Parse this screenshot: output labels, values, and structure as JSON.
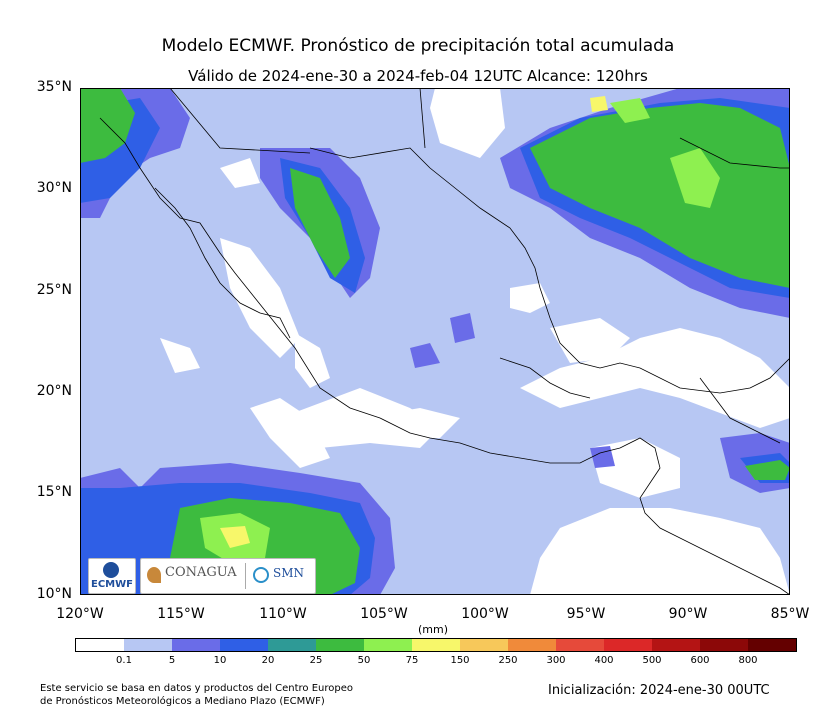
{
  "title": "Modelo ECMWF. Pronóstico de precipitación total acumulada",
  "subtitle": "Válido de 2024-ene-30 a 2024-feb-04 12UTC   Alcance: 120hrs",
  "lat_labels": [
    "35°N",
    "30°N",
    "25°N",
    "20°N",
    "15°N",
    "10°N"
  ],
  "lon_labels": [
    "120°W",
    "115°W",
    "110°W",
    "105°W",
    "100°W",
    "95°W",
    "90°W",
    "85°W"
  ],
  "colorbar": {
    "unit": "(mm)",
    "labels": [
      "0.1",
      "5",
      "10",
      "20",
      "25",
      "50",
      "75",
      "150",
      "250",
      "300",
      "400",
      "500",
      "600",
      "800"
    ],
    "colors": [
      "#ffffff",
      "#b7c7f3",
      "#6a6ce8",
      "#2f5fe6",
      "#2e9a96",
      "#3dbb3f",
      "#8ef050",
      "#f7f76a",
      "#f7c85a",
      "#f08a3a",
      "#e64a3a",
      "#dc2828",
      "#b41414",
      "#8c0808",
      "#640000"
    ]
  },
  "logos": {
    "ecmwf": "ECMWF",
    "conagua": "CONAGUA",
    "smn": "SMN"
  },
  "footnote_line1": "Este servicio se basa en datos y productos del Centro Europeo",
  "footnote_line2": "de Pronósticos Meteorológicos a Mediano Plazo (ECMWF)",
  "initialization": "Inicialización: 2024-ene-30 00UTC",
  "map_extent": {
    "lon": [
      -120,
      -85
    ],
    "lat": [
      10,
      35
    ]
  }
}
